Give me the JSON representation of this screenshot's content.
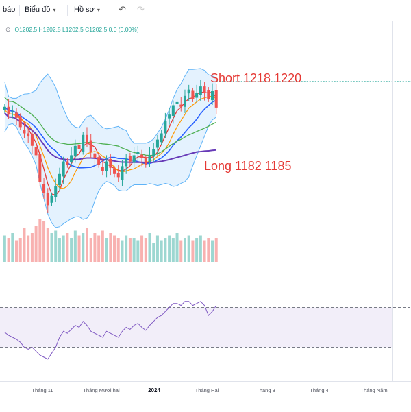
{
  "toolbar": {
    "left_label": "báo",
    "chart_label": "Biểu đồ",
    "profile_label": "Hồ sơ",
    "undo_icon": "undo-icon",
    "redo_icon": "redo-icon",
    "chevron_icon": "chevron-down-icon"
  },
  "ohlc": {
    "icon": "eye-icon",
    "text": "O1202.5 H1202.5 L1202.5 C1202.5 0.0 (0.00%)"
  },
  "annotations": {
    "short": "Short 1218 1220",
    "long": "Long 1182 1185"
  },
  "colors": {
    "up": "#26a69a",
    "down": "#ef5350",
    "bb_line": "#2962ff",
    "bb_fill": "#2196f3",
    "ma_red": "#e53935",
    "ma_orange": "#ff9800",
    "ma_green": "#4caf50",
    "ma_purple": "#673ab7",
    "rsi_line": "#7e57c2",
    "annotation": "#e53935",
    "last_price_line": "#26a69a"
  },
  "chart_data": [
    {
      "type": "candlestick",
      "title": "",
      "ohlc_legend": "O1202.5 H1202.5 L1202.5 C1202.5 0.0 (0.00%)",
      "x_ticks": [
        "Tháng 11",
        "Tháng Mười hai",
        "2024",
        "Tháng Hai",
        "Tháng 3",
        "Tháng 4",
        "Tháng Năm"
      ],
      "x_tick_bold": [
        false,
        false,
        true,
        false,
        false,
        false,
        false
      ],
      "y_range": [
        1120,
        1245
      ],
      "closes": [
        1203,
        1198,
        1200,
        1196,
        1190,
        1186,
        1184,
        1178,
        1172,
        1155,
        1148,
        1140,
        1146,
        1152,
        1160,
        1168,
        1166,
        1172,
        1178,
        1176,
        1185,
        1180,
        1174,
        1170,
        1166,
        1162,
        1168,
        1164,
        1160,
        1158,
        1165,
        1170,
        1168,
        1172,
        1174,
        1170,
        1166,
        1172,
        1176,
        1182,
        1186,
        1194,
        1198,
        1204,
        1206,
        1203,
        1210,
        1214,
        1208,
        1212,
        1216,
        1212,
        1208,
        1213,
        1202.5
      ],
      "annotations": [
        "Short 1218 1220",
        "Long 1182 1185"
      ],
      "overlays": [
        "bollinger_bands",
        "ma_red",
        "ma_orange",
        "ma_blue",
        "ma_green",
        "ma_purple"
      ],
      "last_price": 1202.5
    },
    {
      "type": "bar",
      "title": "volume",
      "volume_relative": [
        0.55,
        0.5,
        0.6,
        0.45,
        0.5,
        0.7,
        0.55,
        0.6,
        0.75,
        0.9,
        0.85,
        0.7,
        0.6,
        0.65,
        0.5,
        0.55,
        0.6,
        0.5,
        0.65,
        0.55,
        0.6,
        0.7,
        0.5,
        0.6,
        0.55,
        0.65,
        0.5,
        0.6,
        0.55,
        0.5,
        0.45,
        0.55,
        0.5,
        0.5,
        0.45,
        0.55,
        0.5,
        0.6,
        0.4,
        0.55,
        0.45,
        0.5,
        0.55,
        0.5,
        0.6,
        0.45,
        0.5,
        0.55,
        0.45,
        0.5,
        0.55,
        0.45,
        0.5,
        0.45,
        0.5
      ]
    },
    {
      "type": "line",
      "title": "rsi",
      "y_range": [
        0,
        100
      ],
      "band": [
        30,
        70
      ],
      "values": [
        45,
        42,
        40,
        38,
        35,
        30,
        28,
        30,
        26,
        22,
        20,
        18,
        24,
        30,
        40,
        46,
        44,
        48,
        52,
        50,
        56,
        52,
        46,
        44,
        42,
        40,
        46,
        44,
        42,
        40,
        46,
        50,
        48,
        52,
        54,
        50,
        47,
        52,
        56,
        60,
        62,
        66,
        70,
        74,
        74,
        72,
        76,
        76,
        72,
        74,
        76,
        72,
        62,
        66,
        72
      ]
    }
  ]
}
